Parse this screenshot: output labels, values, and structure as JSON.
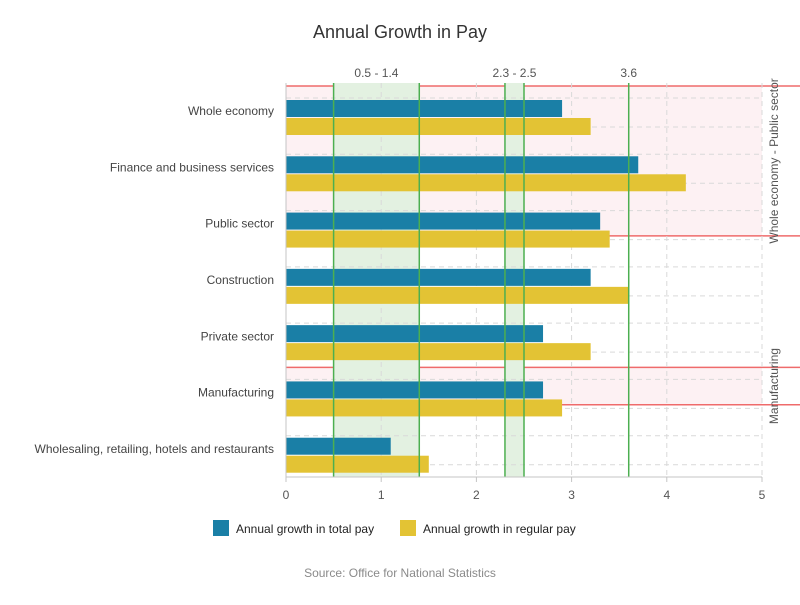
{
  "chart_data": {
    "type": "bar",
    "orientation": "horizontal",
    "title": "Annual Growth in Pay",
    "source": "Source: Office for National Statistics",
    "categories": [
      "Whole economy",
      "Finance and business services",
      "Public sector",
      "Construction",
      "Private sector",
      "Manufacturing",
      "Wholesaling, retailing, hotels and restaurants"
    ],
    "series": [
      {
        "name": "Annual growth in total pay",
        "color": "#1a7fa6",
        "values": [
          2.9,
          3.7,
          3.3,
          3.2,
          2.7,
          2.7,
          1.1
        ]
      },
      {
        "name": "Annual growth in regular pay",
        "color": "#e3c334",
        "values": [
          3.2,
          4.2,
          3.4,
          3.6,
          3.2,
          2.9,
          1.5
        ]
      }
    ],
    "xlim": [
      0,
      5
    ],
    "x_ticks": [
      "0",
      "1",
      "2",
      "3",
      "4",
      "5"
    ],
    "grid": true,
    "legend_position": "bottom",
    "x_bands": [
      {
        "from": 0.5,
        "to": 1.4,
        "label": "0.5 - 1.4",
        "fill": "#e3f1e1",
        "line": "#4caf50"
      },
      {
        "from": 2.3,
        "to": 2.5,
        "label": "2.3 - 2.5",
        "fill": "#e3f1e1",
        "line": "#4caf50"
      }
    ],
    "x_lines": [
      {
        "value": 3.6,
        "label": "3.6",
        "color": "#4caf50"
      }
    ],
    "y_bands": [
      {
        "from_category": "Whole economy",
        "to_category": "Public sector",
        "label": "Whole economy - Public sector",
        "fill": "#fdf1f3",
        "line": "#ef6b6b"
      },
      {
        "from_category": "Manufacturing",
        "to_category": "Manufacturing",
        "label": "Manufacturing",
        "fill": "#fdf1f3",
        "line": "#ef6b6b"
      }
    ]
  }
}
